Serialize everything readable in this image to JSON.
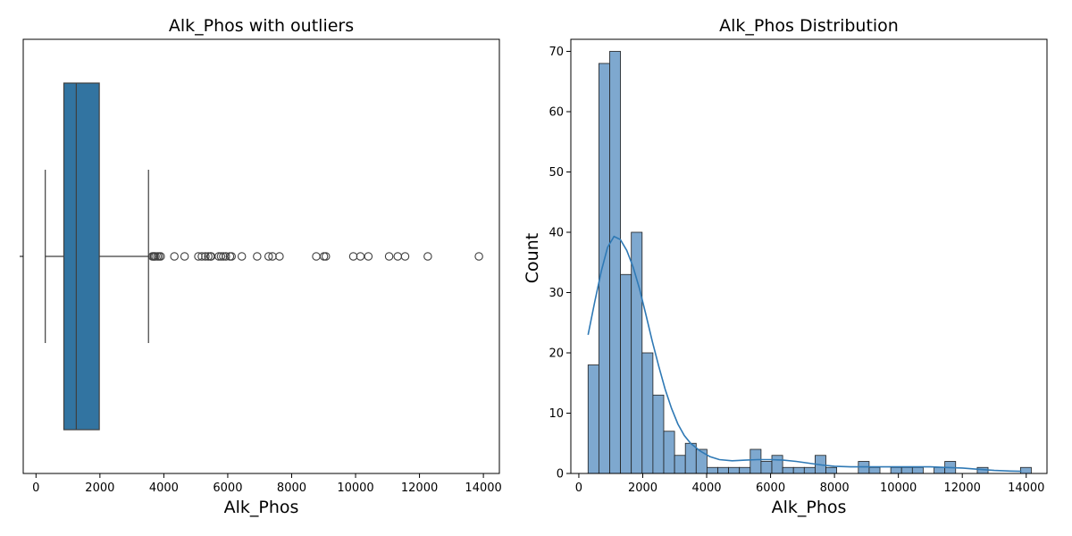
{
  "chart_data": [
    {
      "type": "box",
      "title": "Alk_Phos with outliers",
      "xlabel": "Alk_Phos",
      "ylabel": "",
      "xlim": [
        -400,
        14500
      ],
      "xticks": [
        0,
        2000,
        4000,
        6000,
        8000,
        10000,
        12000,
        14000
      ],
      "grid": false,
      "box": {
        "whisker_low": 290,
        "q1": 871,
        "median": 1260,
        "q3": 1980,
        "whisker_high": 3520,
        "color": "#3274a1"
      },
      "outliers": [
        3640,
        3680,
        3700,
        3740,
        3800,
        3850,
        3900,
        4330,
        4650,
        5080,
        5190,
        5300,
        5390,
        5460,
        5480,
        5720,
        5790,
        5860,
        5940,
        6070,
        6120,
        6440,
        6920,
        7280,
        7400,
        7620,
        8770,
        9010,
        9070,
        9930,
        10150,
        10400,
        11050,
        11320,
        11550,
        12260,
        13860
      ]
    },
    {
      "type": "histogram",
      "title": "Alk_Phos Distribution",
      "xlabel": "Alk_Phos",
      "ylabel": "Count",
      "xlim": [
        -250,
        14650
      ],
      "ylim": [
        0,
        72
      ],
      "xticks": [
        0,
        2000,
        4000,
        6000,
        8000,
        10000,
        12000,
        14000
      ],
      "yticks": [
        0,
        10,
        20,
        30,
        40,
        50,
        60,
        70
      ],
      "grid": false,
      "bar_color": "#7ea8cf",
      "line_color": "#2f79b5",
      "bin_start": 289,
      "bin_width": 338.3,
      "counts": [
        18,
        68,
        70,
        33,
        40,
        20,
        13,
        7,
        3,
        5,
        4,
        1,
        1,
        1,
        1,
        4,
        2,
        3,
        1,
        1,
        1,
        3,
        1,
        0,
        0,
        2,
        1,
        0,
        1,
        1,
        1,
        0,
        1,
        2,
        0,
        0,
        1,
        0,
        0,
        0,
        1
      ],
      "kde": {
        "x": [
          289,
          500,
          700,
          900,
          1100,
          1300,
          1500,
          1700,
          1900,
          2100,
          2300,
          2500,
          2700,
          2900,
          3100,
          3300,
          3500,
          3800,
          4100,
          4400,
          4800,
          5200,
          5600,
          6000,
          6400,
          6800,
          7200,
          7600,
          8000,
          8500,
          9000,
          9500,
          10000,
          10500,
          11000,
          11500,
          12000,
          12500,
          13000,
          13500,
          13850
        ],
        "y": [
          23,
          28.5,
          33.5,
          37.5,
          39.3,
          38.8,
          37,
          34.2,
          30.6,
          26.3,
          21.9,
          17.8,
          14,
          10.8,
          8.2,
          6.3,
          5,
          3.7,
          2.8,
          2.3,
          2.1,
          2.2,
          2.3,
          2.3,
          2.2,
          2,
          1.7,
          1.4,
          1.2,
          1.1,
          1.1,
          1.1,
          1.1,
          1.1,
          1.1,
          1.0,
          0.9,
          0.7,
          0.5,
          0.4,
          0.35
        ]
      }
    }
  ]
}
